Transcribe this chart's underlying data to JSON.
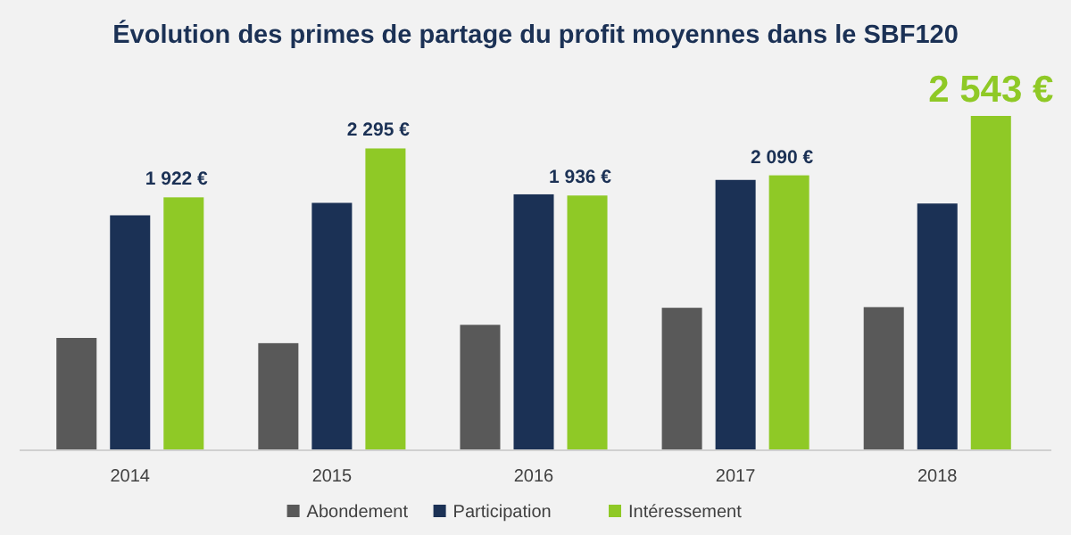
{
  "chart_data": {
    "type": "bar",
    "title": "Évolution des primes de partage du profit moyennes dans le SBF120",
    "categories": [
      "2014",
      "2015",
      "2016",
      "2017",
      "2018"
    ],
    "series": [
      {
        "name": "Abondement",
        "color": "#595959",
        "values": [
          850,
          810,
          950,
          1080,
          1085
        ]
      },
      {
        "name": "Participation",
        "color": "#1b3155",
        "values": [
          1785,
          1880,
          1945,
          2055,
          1875
        ]
      },
      {
        "name": "Intéressement",
        "color": "#8fc926",
        "values": [
          1922,
          2295,
          1936,
          2090,
          2543
        ],
        "value_labels": [
          "1 922 €",
          "2 295 €",
          "1 936 €",
          "2 090 €",
          "2 543 €"
        ]
      }
    ],
    "legend": "bottom"
  }
}
